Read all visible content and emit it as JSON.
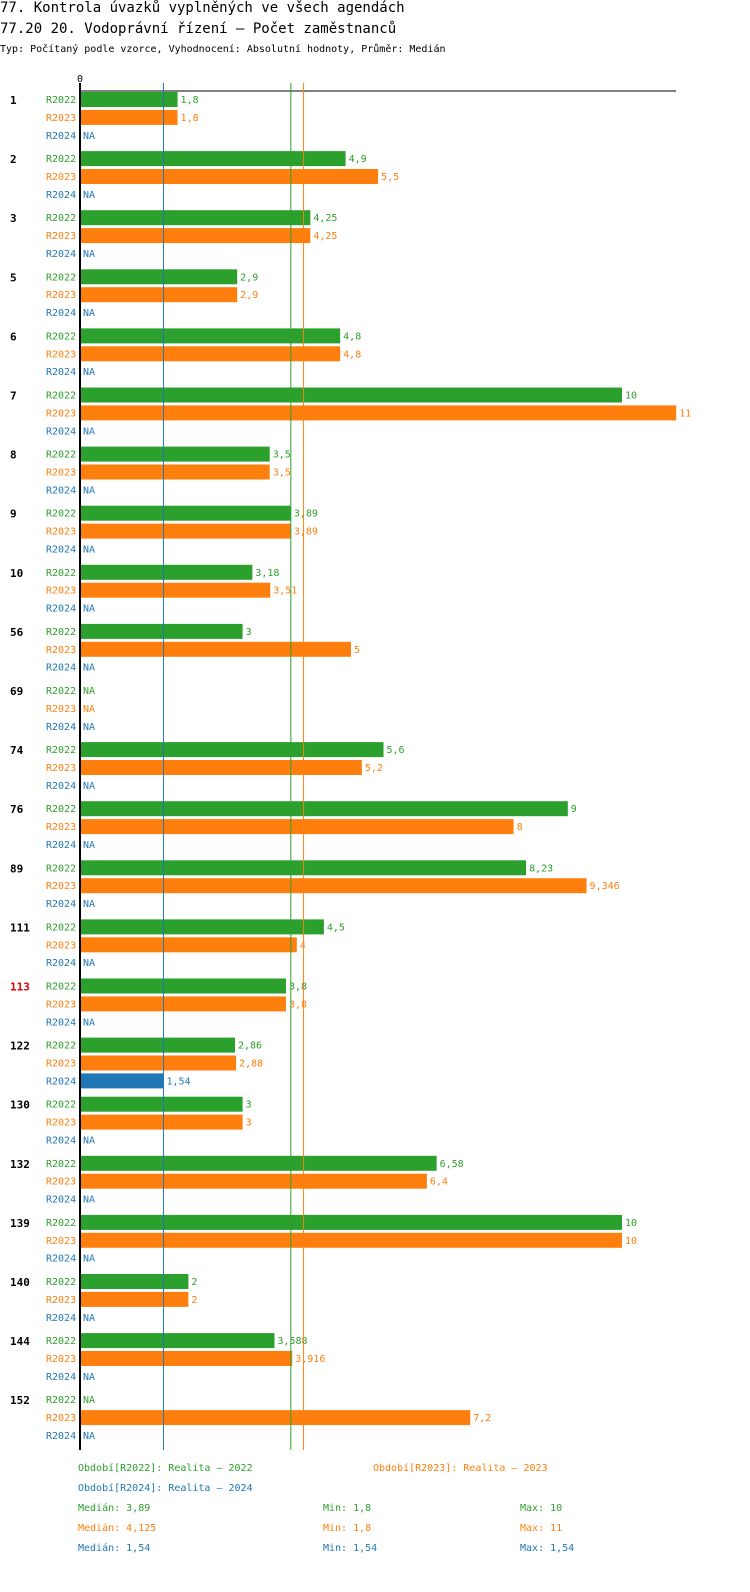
{
  "title": "77. Kontrola úvazků vyplněných ve všech agendách",
  "subtitle": "77.20 20. Vodoprávní řízení – Počet zaměstnanců",
  "info": "Typ: Počítaný podle vzorce, Vyhodnocení: Absolutní hodnoty, Průměr: Medián",
  "colors": {
    "R2022": "#2ca02c",
    "R2023": "#ff7f0e",
    "R2024": "#1f77b4",
    "highlight": "#e00000",
    "axis": "#000000"
  },
  "chart_data": {
    "type": "bar",
    "orientation": "horizontal",
    "axis_zero_label": "0",
    "xlim": [
      0,
      11
    ],
    "na_label": "NA",
    "series_names": [
      "R2022",
      "R2023",
      "R2024"
    ],
    "categories": [
      {
        "id": "1",
        "highlight": false,
        "values": [
          "1,8",
          "1,8",
          null
        ]
      },
      {
        "id": "2",
        "highlight": false,
        "values": [
          "4,9",
          "5,5",
          null
        ]
      },
      {
        "id": "3",
        "highlight": false,
        "values": [
          "4,25",
          "4,25",
          null
        ]
      },
      {
        "id": "5",
        "highlight": false,
        "values": [
          "2,9",
          "2,9",
          null
        ]
      },
      {
        "id": "6",
        "highlight": false,
        "values": [
          "4,8",
          "4,8",
          null
        ]
      },
      {
        "id": "7",
        "highlight": false,
        "values": [
          "10",
          "11",
          null
        ]
      },
      {
        "id": "8",
        "highlight": false,
        "values": [
          "3,5",
          "3,5",
          null
        ]
      },
      {
        "id": "9",
        "highlight": false,
        "values": [
          "3,89",
          "3,89",
          null
        ]
      },
      {
        "id": "10",
        "highlight": false,
        "values": [
          "3,18",
          "3,51",
          null
        ]
      },
      {
        "id": "56",
        "highlight": false,
        "values": [
          "3",
          "5",
          null
        ]
      },
      {
        "id": "69",
        "highlight": false,
        "values": [
          null,
          null,
          null
        ]
      },
      {
        "id": "74",
        "highlight": false,
        "values": [
          "5,6",
          "5,2",
          null
        ]
      },
      {
        "id": "76",
        "highlight": false,
        "values": [
          "9",
          "8",
          null
        ]
      },
      {
        "id": "89",
        "highlight": false,
        "values": [
          "8,23",
          "9,346",
          null
        ]
      },
      {
        "id": "111",
        "highlight": false,
        "values": [
          "4,5",
          "4",
          null
        ]
      },
      {
        "id": "113",
        "highlight": true,
        "values": [
          "3,8",
          "3,8",
          null
        ]
      },
      {
        "id": "122",
        "highlight": false,
        "values": [
          "2,86",
          "2,88",
          "1,54"
        ]
      },
      {
        "id": "130",
        "highlight": false,
        "values": [
          "3",
          "3",
          null
        ]
      },
      {
        "id": "132",
        "highlight": false,
        "values": [
          "6,58",
          "6,4",
          null
        ]
      },
      {
        "id": "139",
        "highlight": false,
        "values": [
          "10",
          "10",
          null
        ]
      },
      {
        "id": "140",
        "highlight": false,
        "values": [
          "2",
          "2",
          null
        ]
      },
      {
        "id": "144",
        "highlight": false,
        "values": [
          "3,588",
          "3,916",
          null
        ]
      },
      {
        "id": "152",
        "highlight": false,
        "values": [
          null,
          "7,2",
          null
        ]
      }
    ],
    "reference_lines": [
      {
        "series": "R2022",
        "value": 3.89
      },
      {
        "series": "R2023",
        "value": 4.125
      },
      {
        "series": "R2024",
        "value": 1.54
      }
    ]
  },
  "legend": {
    "period_2022": "Období[R2022]: Realita – 2022",
    "period_2023": "Období[R2023]: Realita – 2023",
    "period_2024": "Období[R2024]: Realita – 2024",
    "stats": [
      {
        "median": "Medián: 3,89",
        "min": "Min: 1,8",
        "max": "Max: 10"
      },
      {
        "median": "Medián: 4,125",
        "min": "Min: 1,8",
        "max": "Max: 11"
      },
      {
        "median": "Medián: 1,54",
        "min": "Min: 1,54",
        "max": "Max: 1,54"
      }
    ]
  }
}
